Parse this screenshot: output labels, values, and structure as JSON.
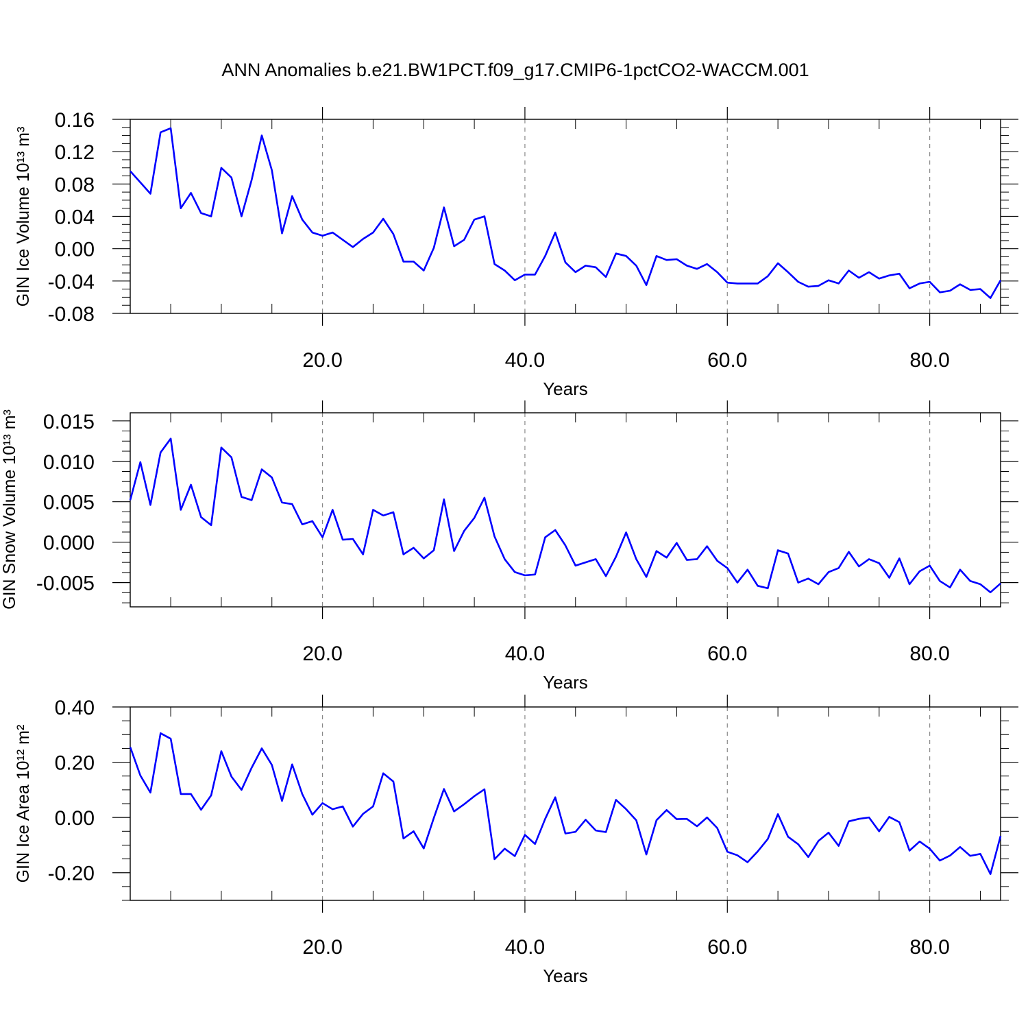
{
  "title": "ANN Anomalies b.e21.BW1PCT.f09_g17.CMIP6-1pctCO2-WACCM.001",
  "x_axis": {
    "label": "Years",
    "ticks": [
      20,
      40,
      60,
      80
    ],
    "tick_labels": [
      "20.0",
      "40.0",
      "60.0",
      "80.0"
    ],
    "range": [
      1,
      87
    ]
  },
  "colors": {
    "line": "#0000ff",
    "grid": "#888888",
    "axis": "#000000"
  },
  "chart_data": [
    {
      "type": "line",
      "ylabel": "GIN Ice Volume 10¹³ m³",
      "ylim": [
        -0.08,
        0.16
      ],
      "yticks": [
        -0.08,
        -0.04,
        0.0,
        0.04,
        0.08,
        0.12,
        0.16
      ],
      "ytick_labels": [
        "-0.08",
        "-0.04",
        "0.00",
        "0.04",
        "0.08",
        "0.12",
        "0.16"
      ],
      "grid": "vertical dashed at x ticks",
      "x_start": 1,
      "values": [
        0.096,
        0.082,
        0.068,
        0.144,
        0.149,
        0.05,
        0.069,
        0.044,
        0.04,
        0.1,
        0.088,
        0.04,
        0.085,
        0.14,
        0.097,
        0.019,
        0.065,
        0.036,
        0.02,
        0.016,
        0.02,
        0.011,
        0.002,
        0.012,
        0.02,
        0.037,
        0.018,
        -0.016,
        -0.016,
        -0.027,
        0.001,
        0.051,
        0.003,
        0.011,
        0.036,
        0.04,
        -0.019,
        -0.027,
        -0.039,
        -0.032,
        -0.032,
        -0.009,
        0.02,
        -0.017,
        -0.029,
        -0.021,
        -0.023,
        -0.035,
        -0.006,
        -0.009,
        -0.021,
        -0.045,
        -0.009,
        -0.014,
        -0.013,
        -0.021,
        -0.025,
        -0.019,
        -0.029,
        -0.042,
        -0.043,
        -0.043,
        -0.043,
        -0.034,
        -0.018,
        -0.029,
        -0.041,
        -0.047,
        -0.046,
        -0.039,
        -0.043,
        -0.027,
        -0.036,
        -0.029,
        -0.037,
        -0.033,
        -0.031,
        -0.049,
        -0.043,
        -0.041,
        -0.054,
        -0.052,
        -0.044,
        -0.051,
        -0.05,
        -0.061,
        -0.039
      ]
    },
    {
      "type": "line",
      "ylabel": "GIN Snow Volume 10¹³ m³",
      "ylim": [
        -0.008,
        0.016
      ],
      "yticks": [
        -0.005,
        0.0,
        0.005,
        0.01,
        0.015
      ],
      "ytick_labels": [
        "-0.005",
        "0.000",
        "0.005",
        "0.010",
        "0.015"
      ],
      "grid": "vertical dashed at x ticks",
      "x_start": 1,
      "values": [
        0.0052,
        0.0099,
        0.0046,
        0.0111,
        0.0128,
        0.004,
        0.0071,
        0.0031,
        0.0021,
        0.0117,
        0.0105,
        0.0056,
        0.0052,
        0.009,
        0.008,
        0.0049,
        0.0047,
        0.0022,
        0.0026,
        0.0006,
        0.004,
        0.0003,
        0.0004,
        -0.0015,
        0.004,
        0.0033,
        0.0037,
        -0.0015,
        -0.0007,
        -0.002,
        -0.001,
        0.0053,
        -0.0011,
        0.0014,
        0.003,
        0.0055,
        0.0007,
        -0.0021,
        -0.0037,
        -0.0041,
        -0.004,
        0.0006,
        0.0015,
        -0.0004,
        -0.0029,
        -0.0025,
        -0.0021,
        -0.0042,
        -0.0018,
        0.0012,
        -0.0021,
        -0.0043,
        -0.0011,
        -0.0019,
        -0.0001,
        -0.0022,
        -0.0021,
        -0.0005,
        -0.0023,
        -0.0032,
        -0.005,
        -0.0034,
        -0.0054,
        -0.0057,
        -0.001,
        -0.0014,
        -0.005,
        -0.0045,
        -0.0052,
        -0.0037,
        -0.0032,
        -0.0012,
        -0.003,
        -0.0021,
        -0.0026,
        -0.0044,
        -0.002,
        -0.0052,
        -0.0036,
        -0.0029,
        -0.0048,
        -0.0056,
        -0.0034,
        -0.0048,
        -0.0052,
        -0.0062,
        -0.0051
      ]
    },
    {
      "type": "line",
      "ylabel": "GIN Ice Area 10¹² m²",
      "ylim": [
        -0.3,
        0.4
      ],
      "yticks": [
        -0.2,
        0.0,
        0.2,
        0.4
      ],
      "ytick_labels": [
        "-0.20",
        "0.00",
        "0.20",
        "0.40"
      ],
      "grid": "vertical dashed at x ticks",
      "x_start": 1,
      "values": [
        0.255,
        0.152,
        0.09,
        0.305,
        0.285,
        0.085,
        0.085,
        0.028,
        0.08,
        0.24,
        0.148,
        0.1,
        0.18,
        0.25,
        0.19,
        0.06,
        0.192,
        0.085,
        0.01,
        0.052,
        0.03,
        0.04,
        -0.033,
        0.013,
        0.04,
        0.16,
        0.13,
        -0.076,
        -0.05,
        -0.112,
        -0.002,
        0.103,
        0.022,
        0.048,
        0.077,
        0.102,
        -0.151,
        -0.113,
        -0.14,
        -0.063,
        -0.096,
        -0.005,
        0.073,
        -0.058,
        -0.052,
        -0.008,
        -0.047,
        -0.053,
        0.064,
        0.03,
        -0.01,
        -0.134,
        -0.01,
        0.027,
        -0.006,
        -0.005,
        -0.032,
        0.0,
        -0.038,
        -0.124,
        -0.137,
        -0.162,
        -0.123,
        -0.078,
        0.012,
        -0.07,
        -0.097,
        -0.143,
        -0.085,
        -0.055,
        -0.103,
        -0.014,
        -0.005,
        0.0,
        -0.05,
        0.002,
        -0.017,
        -0.12,
        -0.087,
        -0.113,
        -0.156,
        -0.138,
        -0.107,
        -0.139,
        -0.132,
        -0.205,
        -0.067
      ]
    }
  ]
}
